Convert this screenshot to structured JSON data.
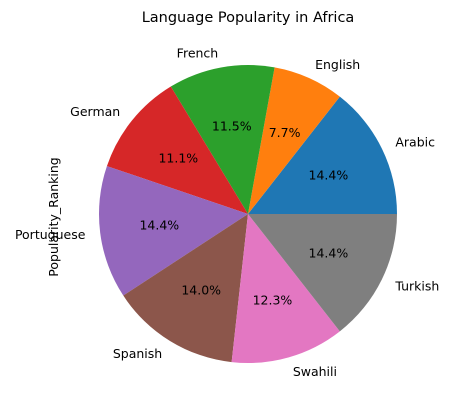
{
  "chart_data": {
    "type": "pie",
    "title": "Language Popularity in Africa",
    "ylabel": "Popularity_Ranking",
    "categories": [
      "Arabic",
      "English",
      "French",
      "German",
      "Portuguese",
      "Spanish",
      "Swahili",
      "Turkish"
    ],
    "values": [
      14.4,
      7.7,
      11.5,
      11.1,
      14.4,
      14.0,
      12.3,
      14.4
    ],
    "percent_labels": [
      "14.4%",
      "7.7%",
      "11.5%",
      "11.1%",
      "14.4%",
      "14.0%",
      "12.3%",
      "14.4%"
    ],
    "colors": [
      "#1f77b4",
      "#ff7f0e",
      "#2ca02c",
      "#d62728",
      "#9467bd",
      "#8c564b",
      "#e377c2",
      "#7f7f7f"
    ],
    "start_angle_deg": 0,
    "direction": "counterclockwise"
  }
}
